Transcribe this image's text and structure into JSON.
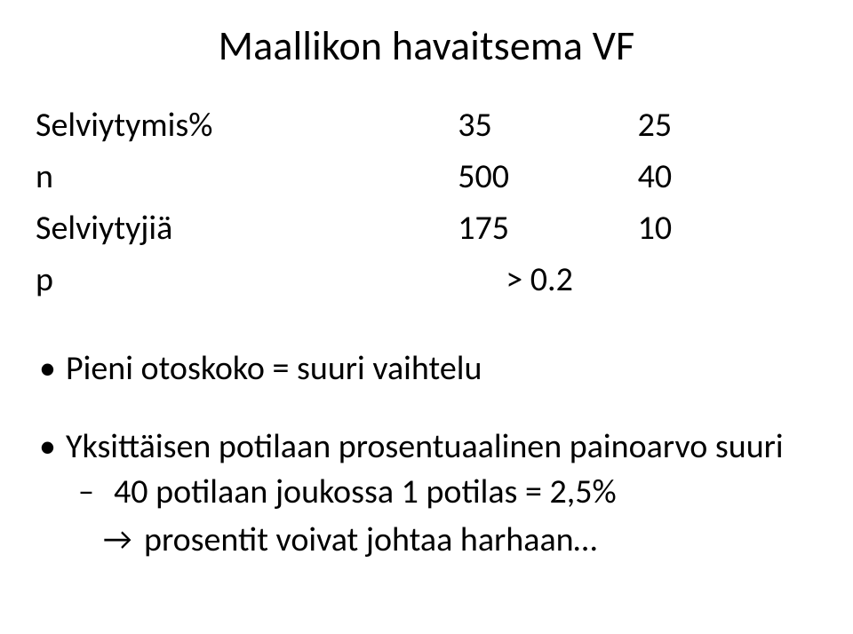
{
  "title": "Maallikon havaitsema VF",
  "table": {
    "rows": [
      {
        "label": "Selviytymis%",
        "col1": "35",
        "col2": "25"
      },
      {
        "label": "n",
        "col1": "500",
        "col2": "40"
      },
      {
        "label": "Selviytyjiä",
        "col1": "175",
        "col2": "10"
      }
    ],
    "pRow": {
      "label": "p",
      "value": "> 0.2"
    }
  },
  "bullets": [
    {
      "text": "Pieni otoskoko = suuri vaihtelu"
    },
    {
      "text": "Yksittäisen potilaan prosentuaalinen painoarvo suuri",
      "sub": [
        {
          "style": "dash",
          "text": "40 potilaan joukossa 1 potilas = 2,5%"
        },
        {
          "style": "arrow",
          "text": "prosentit voivat johtaa harhaan…"
        }
      ]
    }
  ],
  "style": {
    "background": "#ffffff",
    "text_color": "#000000",
    "title_fontsize": 46,
    "body_fontsize": 38,
    "font_family": "Calibri"
  }
}
